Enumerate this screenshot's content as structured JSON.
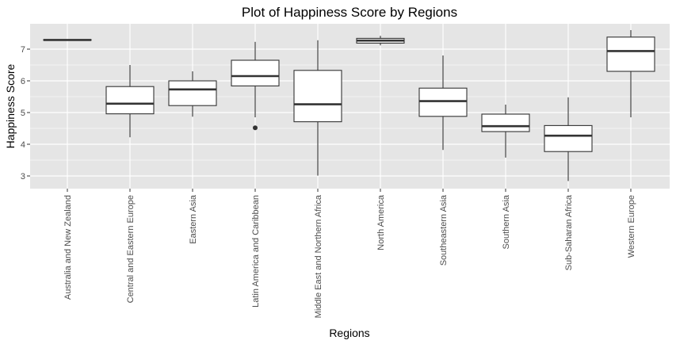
{
  "chart_data": {
    "type": "boxplot",
    "title": "Plot of Happiness Score by Regions",
    "xlabel": "Regions",
    "ylabel": "Happiness Score",
    "ylim": [
      2.6,
      7.8
    ],
    "yticks": [
      3,
      4,
      5,
      6,
      7
    ],
    "grid": true,
    "panel_background": "#e5e5e5",
    "grid_color": "#ffffff",
    "box_fill": "#ffffff",
    "line_color": "#333333",
    "categories": [
      "Australia and New Zealand",
      "Central and Eastern Europe",
      "Eastern Asia",
      "Latin America and Caribbean",
      "Middle East and Northern Africa",
      "North America",
      "Southeastern Asia",
      "Southern Asia",
      "Sub-Saharan Africa",
      "Western Europe"
    ],
    "boxes": [
      {
        "min": 7.28,
        "q1": 7.28,
        "median": 7.29,
        "q3": 7.3,
        "max": 7.3,
        "outliers": []
      },
      {
        "min": 4.22,
        "q1": 4.96,
        "median": 5.28,
        "q3": 5.82,
        "max": 6.5,
        "outliers": []
      },
      {
        "min": 4.87,
        "q1": 5.22,
        "median": 5.73,
        "q3": 6.0,
        "max": 6.3,
        "outliers": []
      },
      {
        "min": 4.85,
        "q1": 5.84,
        "median": 6.15,
        "q3": 6.65,
        "max": 7.23,
        "outliers": [
          4.52
        ]
      },
      {
        "min": 3.01,
        "q1": 4.71,
        "median": 5.26,
        "q3": 6.33,
        "max": 7.28,
        "outliers": []
      },
      {
        "min": 7.12,
        "q1": 7.19,
        "median": 7.27,
        "q3": 7.34,
        "max": 7.42,
        "outliers": []
      },
      {
        "min": 3.82,
        "q1": 4.88,
        "median": 5.36,
        "q3": 5.77,
        "max": 6.8,
        "outliers": []
      },
      {
        "min": 3.58,
        "q1": 4.4,
        "median": 4.57,
        "q3": 4.95,
        "max": 5.25,
        "outliers": []
      },
      {
        "min": 2.84,
        "q1": 3.77,
        "median": 4.27,
        "q3": 4.59,
        "max": 5.48,
        "outliers": []
      },
      {
        "min": 4.85,
        "q1": 6.3,
        "median": 6.94,
        "q3": 7.38,
        "max": 7.6,
        "outliers": []
      }
    ]
  }
}
